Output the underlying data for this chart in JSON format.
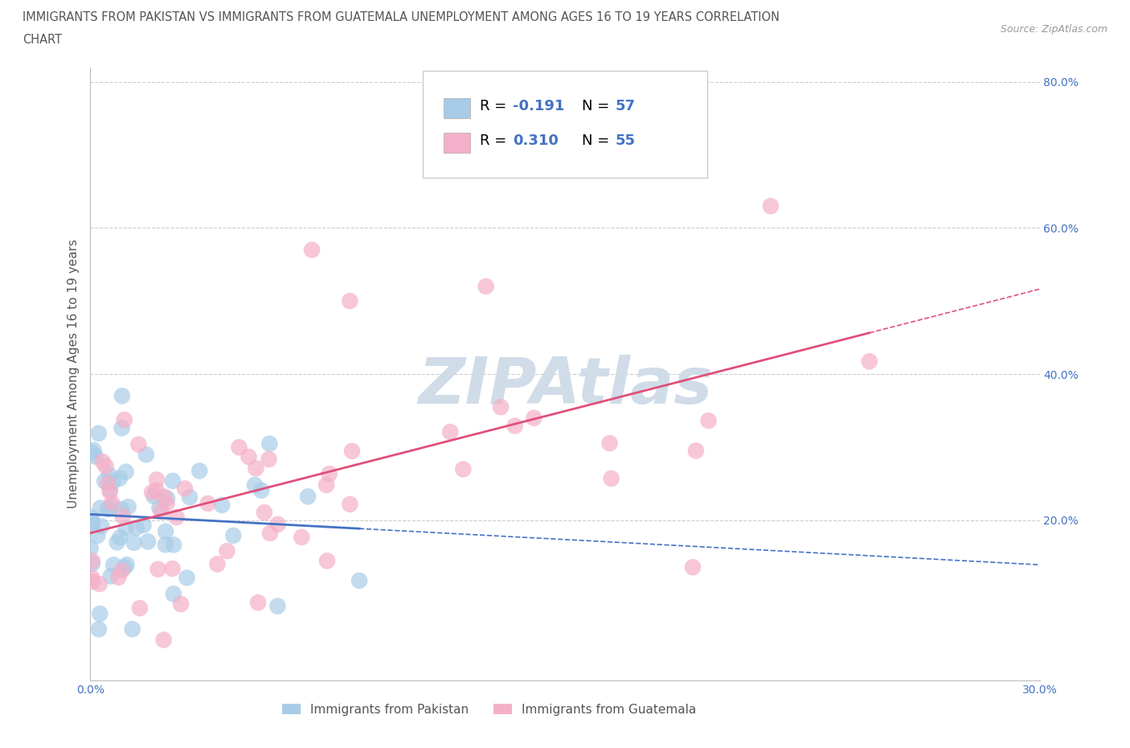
{
  "title_line1": "IMMIGRANTS FROM PAKISTAN VS IMMIGRANTS FROM GUATEMALA UNEMPLOYMENT AMONG AGES 16 TO 19 YEARS CORRELATION",
  "title_line2": "CHART",
  "source": "Source: ZipAtlas.com",
  "ylabel": "Unemployment Among Ages 16 to 19 years",
  "xlabel_pakistan": "Immigrants from Pakistan",
  "xlabel_guatemala": "Immigrants from Guatemala",
  "xlim": [
    0.0,
    0.3
  ],
  "ylim": [
    -0.02,
    0.82
  ],
  "xticks": [
    0.0,
    0.05,
    0.1,
    0.15,
    0.2,
    0.25,
    0.3
  ],
  "yticks": [
    0.0,
    0.2,
    0.4,
    0.6,
    0.8
  ],
  "R_pakistan": -0.191,
  "N_pakistan": 57,
  "R_guatemala": 0.31,
  "N_guatemala": 55,
  "color_pakistan": "#a8cce8",
  "color_guatemala": "#f4b0c8",
  "line_color_pakistan": "#4472c4",
  "line_color_guatemala": "#e0507a",
  "stat_label_color": "#4472c4",
  "title_color": "#555555",
  "source_color": "#999999",
  "axis_label_color": "#555555",
  "tick_color": "#4472c4",
  "grid_color": "#cccccc",
  "watermark_color": "#d8e8f0",
  "seed": 12
}
